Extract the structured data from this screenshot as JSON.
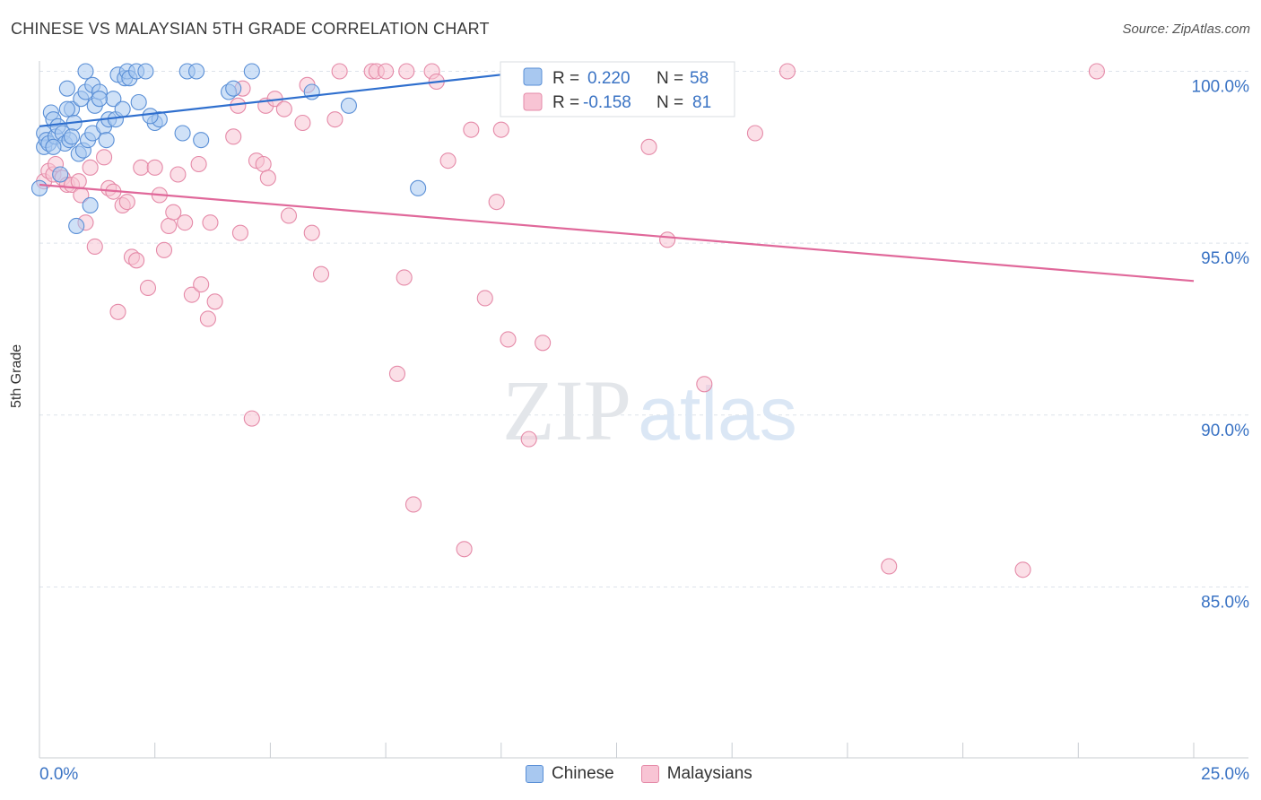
{
  "title": "CHINESE VS MALAYSIAN 5TH GRADE CORRELATION CHART",
  "source": "Source: ZipAtlas.com",
  "watermark": {
    "zip": "ZIP",
    "atlas": "atlas"
  },
  "colors": {
    "blue_fill": "#a8c8f0",
    "blue_stroke": "#5a8fd6",
    "blue_line": "#2f6fce",
    "pink_fill": "#f8c4d4",
    "pink_stroke": "#e58aa8",
    "pink_line": "#e0689a",
    "axis_text": "#3a73c4",
    "grid": "#dde3ea"
  },
  "legend_box": {
    "rows": [
      {
        "r_label": "R = ",
        "r_value": "0.220",
        "n_label": "N = ",
        "n_value": "58",
        "series": "Chinese"
      },
      {
        "r_label": "R = ",
        "r_value": "-0.158",
        "n_label": "N = ",
        "n_value": "81",
        "series": "Malaysians"
      }
    ]
  },
  "legend_bottom": [
    {
      "label": "Chinese"
    },
    {
      "label": "Malaysians"
    }
  ],
  "chart_data": {
    "type": "scatter",
    "title": "CHINESE VS MALAYSIAN 5TH GRADE CORRELATION CHART",
    "xlabel": "",
    "ylabel": "5th Grade",
    "xlim": [
      0,
      25
    ],
    "ylim": [
      80.5,
      100.4
    ],
    "x_tick_labels": [
      "0.0%",
      "25.0%"
    ],
    "y_ticks": [
      100,
      95,
      90,
      85
    ],
    "y_tick_labels": [
      "100.0%",
      "95.0%",
      "90.0%",
      "85.0%"
    ],
    "grid": true,
    "legend_position": "top-center",
    "series": [
      {
        "name": "Chinese",
        "R": 0.22,
        "N": 58,
        "trend": {
          "x": [
            0,
            10
          ],
          "y": [
            98.4,
            99.9
          ]
        },
        "points": [
          [
            0.0,
            96.6
          ],
          [
            0.1,
            97.8
          ],
          [
            0.1,
            98.2
          ],
          [
            0.15,
            98.0
          ],
          [
            0.2,
            97.9
          ],
          [
            0.25,
            98.8
          ],
          [
            0.3,
            98.6
          ],
          [
            0.35,
            98.1
          ],
          [
            0.4,
            98.4
          ],
          [
            0.45,
            97.0
          ],
          [
            0.5,
            98.2
          ],
          [
            0.55,
            97.9
          ],
          [
            0.6,
            99.5
          ],
          [
            0.65,
            98.0
          ],
          [
            0.7,
            98.9
          ],
          [
            0.75,
            98.5
          ],
          [
            0.8,
            95.5
          ],
          [
            0.85,
            97.6
          ],
          [
            0.9,
            99.2
          ],
          [
            0.95,
            97.7
          ],
          [
            1.0,
            100.0
          ],
          [
            1.0,
            99.4
          ],
          [
            1.05,
            98.0
          ],
          [
            1.1,
            96.1
          ],
          [
            1.15,
            99.6
          ],
          [
            1.15,
            98.2
          ],
          [
            1.2,
            99.0
          ],
          [
            1.3,
            99.4
          ],
          [
            1.4,
            98.4
          ],
          [
            1.45,
            98.0
          ],
          [
            1.5,
            98.6
          ],
          [
            1.6,
            99.2
          ],
          [
            1.65,
            98.6
          ],
          [
            1.7,
            99.9
          ],
          [
            1.8,
            98.9
          ],
          [
            1.85,
            99.8
          ],
          [
            1.9,
            100.0
          ],
          [
            1.95,
            99.8
          ],
          [
            2.1,
            100.0
          ],
          [
            2.15,
            99.1
          ],
          [
            2.3,
            100.0
          ],
          [
            2.5,
            98.5
          ],
          [
            2.6,
            98.6
          ],
          [
            3.1,
            98.2
          ],
          [
            3.2,
            100.0
          ],
          [
            3.4,
            100.0
          ],
          [
            3.5,
            98.0
          ],
          [
            4.1,
            99.4
          ],
          [
            4.2,
            99.5
          ],
          [
            4.6,
            100.0
          ],
          [
            5.9,
            99.4
          ],
          [
            6.7,
            99.0
          ],
          [
            8.2,
            96.6
          ],
          [
            0.6,
            98.9
          ],
          [
            0.3,
            97.8
          ],
          [
            1.3,
            99.2
          ],
          [
            0.7,
            98.1
          ],
          [
            2.4,
            98.7
          ]
        ]
      },
      {
        "name": "Malaysians",
        "R": -0.158,
        "N": 81,
        "trend": {
          "x": [
            0,
            25
          ],
          "y": [
            96.7,
            93.9
          ]
        },
        "points": [
          [
            0.1,
            96.8
          ],
          [
            0.2,
            97.1
          ],
          [
            0.3,
            97.0
          ],
          [
            0.35,
            97.3
          ],
          [
            0.5,
            96.9
          ],
          [
            0.6,
            96.7
          ],
          [
            0.7,
            96.7
          ],
          [
            0.85,
            96.8
          ],
          [
            0.9,
            96.4
          ],
          [
            1.0,
            95.6
          ],
          [
            1.1,
            97.2
          ],
          [
            1.2,
            94.9
          ],
          [
            1.4,
            97.5
          ],
          [
            1.5,
            96.6
          ],
          [
            1.6,
            96.5
          ],
          [
            1.7,
            93.0
          ],
          [
            1.8,
            96.1
          ],
          [
            1.9,
            96.2
          ],
          [
            2.0,
            94.6
          ],
          [
            2.1,
            94.5
          ],
          [
            2.2,
            97.2
          ],
          [
            2.35,
            93.7
          ],
          [
            2.5,
            97.2
          ],
          [
            2.6,
            96.4
          ],
          [
            2.7,
            94.8
          ],
          [
            2.8,
            95.5
          ],
          [
            2.9,
            95.9
          ],
          [
            3.0,
            97.0
          ],
          [
            3.15,
            95.6
          ],
          [
            3.3,
            93.5
          ],
          [
            3.45,
            97.3
          ],
          [
            3.5,
            93.8
          ],
          [
            3.65,
            92.8
          ],
          [
            3.7,
            95.6
          ],
          [
            3.8,
            93.3
          ],
          [
            4.2,
            98.1
          ],
          [
            4.3,
            99.0
          ],
          [
            4.4,
            99.5
          ],
          [
            4.35,
            95.3
          ],
          [
            4.6,
            89.9
          ],
          [
            4.7,
            97.4
          ],
          [
            4.85,
            97.3
          ],
          [
            4.9,
            99.0
          ],
          [
            4.95,
            96.9
          ],
          [
            5.1,
            99.2
          ],
          [
            5.3,
            98.9
          ],
          [
            5.4,
            95.8
          ],
          [
            5.7,
            98.5
          ],
          [
            5.8,
            99.6
          ],
          [
            5.9,
            95.3
          ],
          [
            6.1,
            94.1
          ],
          [
            6.4,
            98.6
          ],
          [
            6.5,
            100.0
          ],
          [
            7.2,
            100.0
          ],
          [
            7.3,
            100.0
          ],
          [
            7.5,
            100.0
          ],
          [
            7.75,
            91.2
          ],
          [
            7.9,
            94.0
          ],
          [
            7.95,
            100.0
          ],
          [
            8.1,
            87.4
          ],
          [
            8.5,
            100.0
          ],
          [
            8.6,
            99.7
          ],
          [
            8.85,
            97.4
          ],
          [
            9.2,
            86.1
          ],
          [
            9.35,
            98.3
          ],
          [
            9.65,
            93.4
          ],
          [
            9.9,
            96.2
          ],
          [
            10.0,
            98.3
          ],
          [
            10.15,
            92.2
          ],
          [
            10.6,
            89.3
          ],
          [
            10.9,
            92.1
          ],
          [
            11.4,
            100.0
          ],
          [
            13.2,
            97.8
          ],
          [
            13.6,
            95.1
          ],
          [
            14.1,
            100.0
          ],
          [
            14.4,
            90.9
          ],
          [
            15.5,
            98.2
          ],
          [
            16.2,
            100.0
          ],
          [
            18.4,
            85.6
          ],
          [
            21.3,
            85.5
          ],
          [
            22.9,
            100.0
          ]
        ]
      }
    ]
  }
}
